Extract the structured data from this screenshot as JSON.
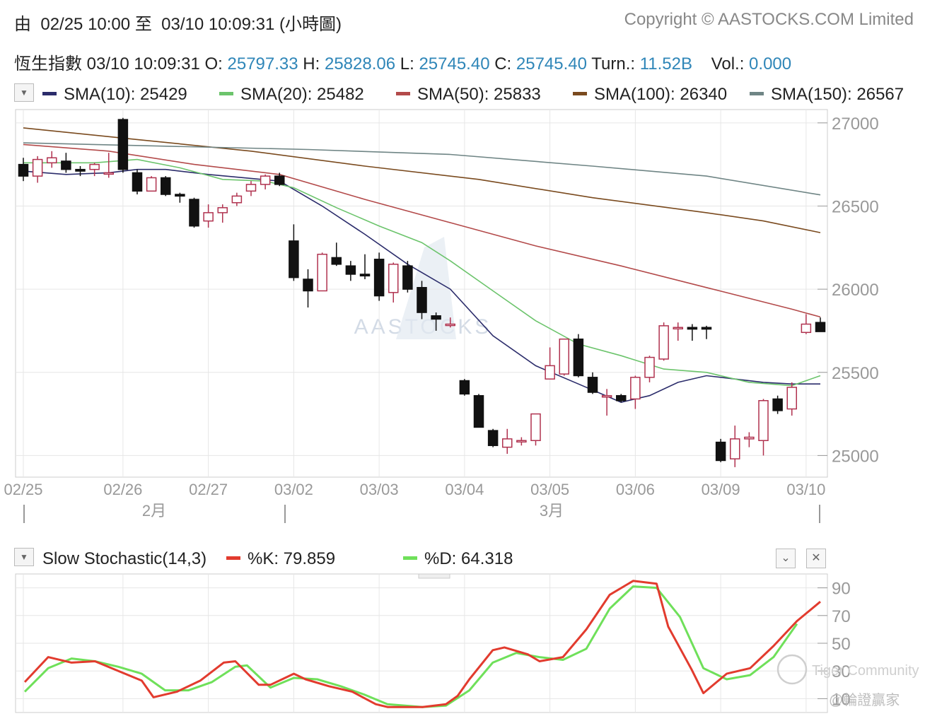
{
  "header": {
    "range_prefix": "由",
    "range_start": "02/25 10:00",
    "range_to": "至",
    "range_end": "03/10 10:09:31",
    "range_suffix": "(小時圖)",
    "copyright": "Copyright © AASTOCKS.COM Limited"
  },
  "quote": {
    "name": "恆生指數",
    "time": "03/10 10:09:31",
    "open_label": "O:",
    "open": "25797.33",
    "high_label": "H:",
    "high": "25828.06",
    "low_label": "L:",
    "low": "25745.40",
    "close_label": "C:",
    "close": "25745.40",
    "turn_label": "Turn.:",
    "turn": "11.52B",
    "vol_label": "Vol.:",
    "vol": "0.000"
  },
  "sma_legend": [
    {
      "label": "SMA(10): 25429",
      "color": "#2b2c6b"
    },
    {
      "label": "SMA(20): 25482",
      "color": "#6cc46c"
    },
    {
      "label": "SMA(50): 25833",
      "color": "#b34a4a"
    },
    {
      "label": "SMA(100): 26340",
      "color": "#7a4a1e"
    },
    {
      "label": "SMA(150): 26567",
      "color": "#6f8585"
    }
  ],
  "watermark": "AASTOCKS",
  "community_watermark": "Tiger Community",
  "author_watermark": "@輪證贏家",
  "colors": {
    "up": "#b0324f",
    "down": "#111111",
    "accent": "#2f86b8",
    "grid": "#e6e6e6"
  },
  "chart_data": [
    {
      "type": "candlestick",
      "ylim": [
        24870,
        27080
      ],
      "yticks": [
        25000,
        25500,
        26000,
        26500,
        27000
      ],
      "x_labels": [
        "02/25",
        "02/26",
        "02/27",
        "03/02",
        "03/03",
        "03/04",
        "03/05",
        "03/06",
        "03/09",
        "03/10"
      ],
      "month_labels": [
        "2月",
        "3月"
      ],
      "candles": [
        {
          "o": 26750,
          "h": 26790,
          "l": 26650,
          "c": 26680
        },
        {
          "o": 26680,
          "h": 26800,
          "l": 26640,
          "c": 26780
        },
        {
          "o": 26760,
          "h": 26830,
          "l": 26730,
          "c": 26790
        },
        {
          "o": 26770,
          "h": 26820,
          "l": 26700,
          "c": 26720
        },
        {
          "o": 26720,
          "h": 26740,
          "l": 26680,
          "c": 26710
        },
        {
          "o": 26720,
          "h": 26760,
          "l": 26680,
          "c": 26750
        },
        {
          "o": 26700,
          "h": 26820,
          "l": 26670,
          "c": 26700
        },
        {
          "o": 27020,
          "h": 27030,
          "l": 26700,
          "c": 26720
        },
        {
          "o": 26700,
          "h": 26720,
          "l": 26570,
          "c": 26590
        },
        {
          "o": 26590,
          "h": 26680,
          "l": 26590,
          "c": 26670
        },
        {
          "o": 26670,
          "h": 26680,
          "l": 26560,
          "c": 26570
        },
        {
          "o": 26570,
          "h": 26580,
          "l": 26520,
          "c": 26560
        },
        {
          "o": 26540,
          "h": 26550,
          "l": 26370,
          "c": 26380
        },
        {
          "o": 26410,
          "h": 26510,
          "l": 26370,
          "c": 26460
        },
        {
          "o": 26460,
          "h": 26510,
          "l": 26400,
          "c": 26490
        },
        {
          "o": 26520,
          "h": 26580,
          "l": 26500,
          "c": 26560
        },
        {
          "o": 26590,
          "h": 26650,
          "l": 26560,
          "c": 26630
        },
        {
          "o": 26630,
          "h": 26690,
          "l": 26600,
          "c": 26680
        },
        {
          "o": 26680,
          "h": 26700,
          "l": 26620,
          "c": 26630
        },
        {
          "o": 26290,
          "h": 26390,
          "l": 26050,
          "c": 26070
        },
        {
          "o": 26060,
          "h": 26120,
          "l": 25890,
          "c": 25990
        },
        {
          "o": 25990,
          "h": 26220,
          "l": 25990,
          "c": 26210
        },
        {
          "o": 26190,
          "h": 26280,
          "l": 26140,
          "c": 26150
        },
        {
          "o": 26140,
          "h": 26170,
          "l": 26050,
          "c": 26090
        },
        {
          "o": 26090,
          "h": 26210,
          "l": 26060,
          "c": 26080
        },
        {
          "o": 26180,
          "h": 26220,
          "l": 25930,
          "c": 25960
        },
        {
          "o": 25980,
          "h": 26160,
          "l": 25920,
          "c": 26150
        },
        {
          "o": 26140,
          "h": 26170,
          "l": 25980,
          "c": 26000
        },
        {
          "o": 26010,
          "h": 26050,
          "l": 25820,
          "c": 25860
        },
        {
          "o": 25840,
          "h": 25860,
          "l": 25750,
          "c": 25820
        },
        {
          "o": 25790,
          "h": 25830,
          "l": 25770,
          "c": 25790
        },
        {
          "o": 25450,
          "h": 25460,
          "l": 25360,
          "c": 25370
        },
        {
          "o": 25360,
          "h": 25370,
          "l": 25170,
          "c": 25170
        },
        {
          "o": 25150,
          "h": 25160,
          "l": 25050,
          "c": 25060
        },
        {
          "o": 25050,
          "h": 25160,
          "l": 25010,
          "c": 25100
        },
        {
          "o": 25090,
          "h": 25110,
          "l": 25060,
          "c": 25090
        },
        {
          "o": 25090,
          "h": 25250,
          "l": 25060,
          "c": 25250
        },
        {
          "o": 25460,
          "h": 25650,
          "l": 25460,
          "c": 25540
        },
        {
          "o": 25490,
          "h": 25700,
          "l": 25480,
          "c": 25700
        },
        {
          "o": 25700,
          "h": 25730,
          "l": 25470,
          "c": 25480
        },
        {
          "o": 25470,
          "h": 25500,
          "l": 25370,
          "c": 25380
        },
        {
          "o": 25360,
          "h": 25400,
          "l": 25240,
          "c": 25360
        },
        {
          "o": 25360,
          "h": 25370,
          "l": 25320,
          "c": 25330
        },
        {
          "o": 25340,
          "h": 25480,
          "l": 25280,
          "c": 25470
        },
        {
          "o": 25470,
          "h": 25600,
          "l": 25440,
          "c": 25590
        },
        {
          "o": 25580,
          "h": 25800,
          "l": 25570,
          "c": 25780
        },
        {
          "o": 25770,
          "h": 25800,
          "l": 25690,
          "c": 25770
        },
        {
          "o": 25770,
          "h": 25790,
          "l": 25690,
          "c": 25760
        },
        {
          "o": 25770,
          "h": 25780,
          "l": 25700,
          "c": 25760
        },
        {
          "o": 25080,
          "h": 25100,
          "l": 24960,
          "c": 24970
        },
        {
          "o": 24980,
          "h": 25180,
          "l": 24930,
          "c": 25100
        },
        {
          "o": 25100,
          "h": 25140,
          "l": 25050,
          "c": 25110
        },
        {
          "o": 25090,
          "h": 25340,
          "l": 25000,
          "c": 25330
        },
        {
          "o": 25340,
          "h": 25360,
          "l": 25250,
          "c": 25270
        },
        {
          "o": 25280,
          "h": 25440,
          "l": 25240,
          "c": 25410
        },
        {
          "o": 25740,
          "h": 25850,
          "l": 25730,
          "c": 25790
        },
        {
          "o": 25800,
          "h": 25830,
          "l": 25745,
          "c": 25745
        }
      ],
      "series": [
        {
          "name": "SMA(10)",
          "color": "#2b2c6b",
          "values": [
            [
              0,
              26710
            ],
            [
              3,
              26690
            ],
            [
              6,
              26700
            ],
            [
              8,
              26720
            ],
            [
              10,
              26720
            ],
            [
              13,
              26690
            ],
            [
              18,
              26650
            ],
            [
              21,
              26500
            ],
            [
              24,
              26330
            ],
            [
              27,
              26150
            ],
            [
              30,
              26000
            ],
            [
              33,
              25720
            ],
            [
              36,
              25540
            ],
            [
              39,
              25430
            ],
            [
              42,
              25320
            ],
            [
              44,
              25360
            ],
            [
              46,
              25440
            ],
            [
              48,
              25480
            ],
            [
              50,
              25460
            ],
            [
              52,
              25440
            ],
            [
              54,
              25430
            ],
            [
              56,
              25430
            ]
          ]
        },
        {
          "name": "SMA(20)",
          "color": "#6cc46c",
          "values": [
            [
              0,
              26760
            ],
            [
              5,
              26760
            ],
            [
              8,
              26780
            ],
            [
              11,
              26730
            ],
            [
              14,
              26660
            ],
            [
              17,
              26650
            ],
            [
              19,
              26610
            ],
            [
              22,
              26490
            ],
            [
              25,
              26380
            ],
            [
              28,
              26280
            ],
            [
              30,
              26170
            ],
            [
              33,
              25990
            ],
            [
              36,
              25810
            ],
            [
              39,
              25670
            ],
            [
              42,
              25600
            ],
            [
              45,
              25520
            ],
            [
              48,
              25500
            ],
            [
              51,
              25440
            ],
            [
              54,
              25420
            ],
            [
              56,
              25480
            ]
          ]
        },
        {
          "name": "SMA(50)",
          "color": "#b34a4a",
          "values": [
            [
              0,
              26870
            ],
            [
              6,
              26830
            ],
            [
              12,
              26750
            ],
            [
              18,
              26690
            ],
            [
              24,
              26540
            ],
            [
              30,
              26400
            ],
            [
              36,
              26260
            ],
            [
              42,
              26140
            ],
            [
              48,
              26010
            ],
            [
              54,
              25880
            ],
            [
              56,
              25833
            ]
          ]
        },
        {
          "name": "SMA(100)",
          "color": "#7a4a1e",
          "values": [
            [
              0,
              26970
            ],
            [
              8,
              26900
            ],
            [
              16,
              26830
            ],
            [
              24,
              26740
            ],
            [
              32,
              26660
            ],
            [
              40,
              26550
            ],
            [
              48,
              26460
            ],
            [
              52,
              26410
            ],
            [
              56,
              26340
            ]
          ]
        },
        {
          "name": "SMA(150)",
          "color": "#6f8585",
          "values": [
            [
              0,
              26880
            ],
            [
              10,
              26860
            ],
            [
              20,
              26840
            ],
            [
              30,
              26810
            ],
            [
              40,
              26740
            ],
            [
              48,
              26680
            ],
            [
              56,
              26567
            ]
          ]
        }
      ]
    },
    {
      "type": "line",
      "title": "Slow Stochastic(14,3)",
      "ylim": [
        0,
        100
      ],
      "yticks": [
        10,
        30,
        50,
        70,
        90
      ],
      "series": [
        {
          "name": "%K",
          "label": "%K: 79.859",
          "color": "#e23b2e",
          "values": [
            [
              0,
              22
            ],
            [
              2,
              40
            ],
            [
              4,
              36
            ],
            [
              6,
              37
            ],
            [
              8,
              30
            ],
            [
              10,
              23
            ],
            [
              11,
              11
            ],
            [
              13,
              15
            ],
            [
              15,
              23
            ],
            [
              17,
              36
            ],
            [
              18,
              37
            ],
            [
              20,
              20
            ],
            [
              21,
              20
            ],
            [
              23,
              28
            ],
            [
              24,
              24
            ],
            [
              26,
              19
            ],
            [
              28,
              15
            ],
            [
              30,
              6
            ],
            [
              31,
              4
            ],
            [
              34,
              4
            ],
            [
              36,
              6
            ],
            [
              37,
              12
            ],
            [
              38,
              24
            ],
            [
              40,
              45
            ],
            [
              41,
              47
            ],
            [
              43,
              42
            ],
            [
              44,
              37
            ],
            [
              46,
              40
            ],
            [
              48,
              60
            ],
            [
              50,
              85
            ],
            [
              52,
              95
            ],
            [
              54,
              93
            ],
            [
              55,
              62
            ],
            [
              57,
              31
            ],
            [
              58,
              14
            ],
            [
              60,
              28
            ],
            [
              62,
              32
            ],
            [
              64,
              48
            ],
            [
              66,
              66
            ],
            [
              68,
              80
            ]
          ]
        },
        {
          "name": "%D",
          "label": "%D: 64.318",
          "color": "#6fe05a",
          "values": [
            [
              0,
              15
            ],
            [
              2,
              32
            ],
            [
              4,
              39
            ],
            [
              6,
              37
            ],
            [
              8,
              33
            ],
            [
              10,
              28
            ],
            [
              12,
              16
            ],
            [
              14,
              16
            ],
            [
              16,
              22
            ],
            [
              18,
              33
            ],
            [
              19,
              34
            ],
            [
              21,
              18
            ],
            [
              23,
              25
            ],
            [
              25,
              24
            ],
            [
              27,
              19
            ],
            [
              29,
              13
            ],
            [
              31,
              6
            ],
            [
              34,
              4
            ],
            [
              36,
              5
            ],
            [
              38,
              16
            ],
            [
              40,
              36
            ],
            [
              42,
              43
            ],
            [
              44,
              40
            ],
            [
              46,
              38
            ],
            [
              48,
              46
            ],
            [
              50,
              75
            ],
            [
              52,
              91
            ],
            [
              54,
              90
            ],
            [
              56,
              69
            ],
            [
              58,
              32
            ],
            [
              60,
              24
            ],
            [
              62,
              27
            ],
            [
              64,
              40
            ],
            [
              66,
              64
            ]
          ]
        }
      ]
    }
  ]
}
